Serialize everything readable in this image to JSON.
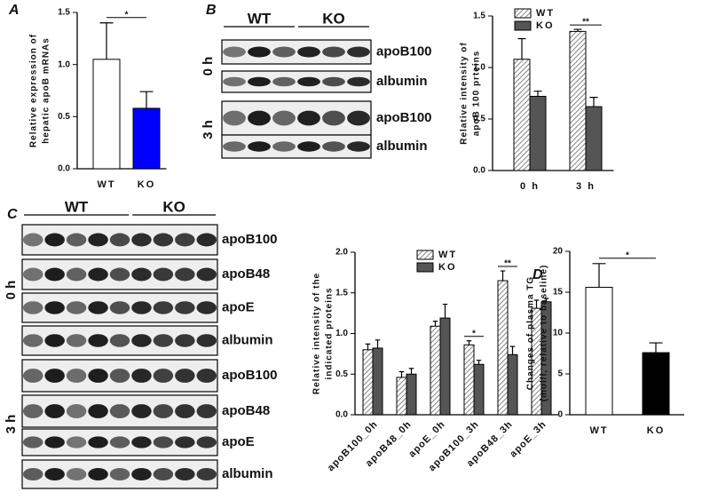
{
  "chart_data": [
    {
      "type": "bar",
      "panel": "A",
      "ylabel": [
        "Relative expression of",
        "hepatic apoB mRNAs"
      ],
      "categories": [
        "WT",
        "KO"
      ],
      "values": [
        1.05,
        0.58
      ],
      "errors": [
        0.35,
        0.16
      ],
      "colors": [
        "#ffffff",
        "#0000ff"
      ],
      "ylim": [
        0,
        1.5
      ],
      "yticks": [
        {
          "value": 0,
          "label": "0.0"
        },
        0.5,
        {
          "value": 1,
          "label": "1.0"
        },
        1.5
      ],
      "annotations": [
        {
          "text": "*",
          "between": [
            0,
            1
          ]
        }
      ]
    },
    {
      "type": "bar",
      "ylabel": [
        "Relative intensity of",
        "apoB 100 prteins"
      ],
      "categories": [
        "0 h",
        "3 h"
      ],
      "series": [
        {
          "name": "WT",
          "color": "#ffffff",
          "pattern": "hatch",
          "values": [
            1.08,
            1.35
          ],
          "errors": [
            0.2,
            0.02
          ]
        },
        {
          "name": "KO",
          "color": "#555555",
          "values": [
            0.72,
            0.62
          ],
          "errors": [
            0.05,
            0.09
          ]
        }
      ],
      "ylim": [
        0,
        1.5
      ],
      "yticks": [
        {
          "value": 0,
          "label": "0.0"
        },
        0.5,
        {
          "value": 1,
          "label": "1.0"
        },
        1.5
      ],
      "legend": "upper left",
      "annotations": [
        {
          "text": "**",
          "category": 1
        }
      ]
    },
    {
      "type": "bar",
      "ylabel": [
        "Relative intensity of the",
        "indicated proteins"
      ],
      "categories": [
        "apoB100_0h",
        "apoB48_0h",
        "apoE_0h",
        "apoB100_3h",
        "apoB48_3h",
        "apoE_3h"
      ],
      "xtick_rotation": 45,
      "series": [
        {
          "name": "WT",
          "color": "#ffffff",
          "pattern": "hatch",
          "values": [
            0.8,
            0.46,
            1.09,
            0.86,
            1.65,
            1.31
          ],
          "errors": [
            0.07,
            0.07,
            0.06,
            0.05,
            0.12,
            0.1
          ]
        },
        {
          "name": "KO",
          "color": "#555555",
          "values": [
            0.82,
            0.5,
            1.19,
            0.62,
            0.74,
            1.39
          ],
          "errors": [
            0.1,
            0.07,
            0.17,
            0.05,
            0.1,
            0.04
          ]
        }
      ],
      "ylim": [
        0,
        2
      ],
      "yticks": [
        {
          "value": 0,
          "label": "0.0"
        },
        0.5,
        {
          "value": 1,
          "label": "1.0"
        },
        1.5,
        {
          "value": 2,
          "label": "2.0"
        }
      ],
      "legend": "upper left",
      "annotations": [
        {
          "text": "*",
          "category": 3
        },
        {
          "text": "**",
          "category": 4
        }
      ]
    },
    {
      "type": "bar",
      "panel": "D",
      "ylabel": [
        "Changes of plasma TG",
        "(mol/l, relative to baseline)"
      ],
      "categories": [
        "WT",
        "KO"
      ],
      "values": [
        15.6,
        7.6
      ],
      "errors": [
        2.9,
        1.2
      ],
      "colors": [
        "#ffffff",
        "#000000"
      ],
      "ylim": [
        0,
        20
      ],
      "yticks": [
        0,
        5,
        10,
        15,
        20
      ],
      "annotations": [
        {
          "text": "*",
          "between": [
            0,
            1
          ]
        }
      ]
    }
  ],
  "blots": [
    {
      "panel": "B",
      "groups": [
        "WT",
        "KO"
      ],
      "sections": [
        {
          "time": "0 h",
          "rows": [
            "apoB100",
            "albumin"
          ]
        },
        {
          "time": "3 h",
          "rows": [
            "apoB100",
            "albumin"
          ]
        }
      ]
    },
    {
      "panel": "C",
      "groups": [
        "WT",
        "KO"
      ],
      "sections": [
        {
          "time": "0 h",
          "rows": [
            "apoB100",
            "apoB48",
            "apoE",
            "albumin"
          ]
        },
        {
          "time": "3 h",
          "rows": [
            "apoB100",
            "apoB48",
            "apoE",
            "albumin"
          ]
        }
      ]
    }
  ]
}
